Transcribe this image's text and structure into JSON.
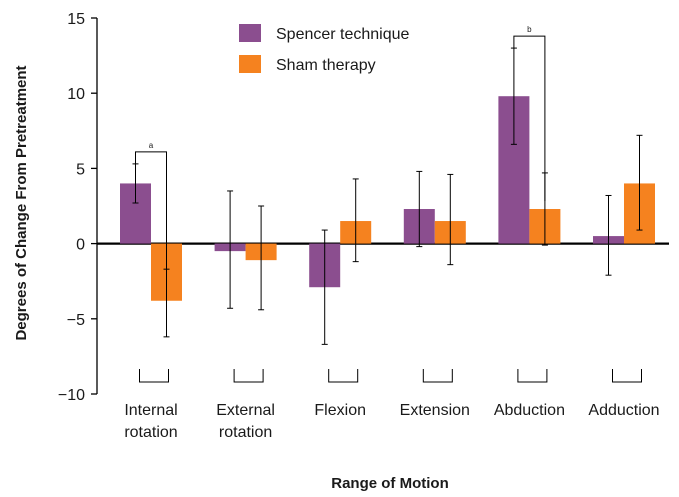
{
  "chart_data": {
    "type": "bar",
    "title": "",
    "xlabel": "Range of Motion",
    "ylabel": "Degrees of Change From Pretreatment",
    "ylim": [
      -10,
      15
    ],
    "yticks": [
      "15",
      "10",
      "5",
      "0",
      "−5",
      "−10"
    ],
    "ytick_values": [
      15,
      10,
      5,
      0,
      -5,
      -10
    ],
    "categories": [
      [
        "Internal",
        "rotation"
      ],
      [
        "External",
        "rotation"
      ],
      [
        "Flexion"
      ],
      [
        "Extension"
      ],
      [
        "Abduction"
      ],
      [
        "Adduction"
      ]
    ],
    "series": [
      {
        "name": "Spencer technique",
        "color": "#8b4e8f",
        "values": [
          4.0,
          -0.5,
          -2.9,
          2.3,
          9.8,
          0.5
        ],
        "error_low": [
          2.7,
          -4.3,
          -6.7,
          -0.2,
          6.6,
          -2.1
        ],
        "error_high": [
          5.3,
          3.5,
          0.9,
          4.8,
          13.0,
          3.2
        ]
      },
      {
        "name": "Sham therapy",
        "color": "#f5821f",
        "values": [
          -3.8,
          -1.1,
          1.5,
          1.5,
          2.3,
          4.0
        ],
        "error_low": [
          -6.2,
          -4.4,
          -1.2,
          -1.4,
          -0.1,
          0.9
        ],
        "error_high": [
          -1.7,
          2.5,
          4.3,
          4.6,
          4.7,
          7.2
        ]
      }
    ],
    "significance": [
      {
        "label": "a",
        "category_index": 0
      },
      {
        "label": "b",
        "category_index": 4
      }
    ],
    "legend_position": "top-center",
    "grid": false
  }
}
